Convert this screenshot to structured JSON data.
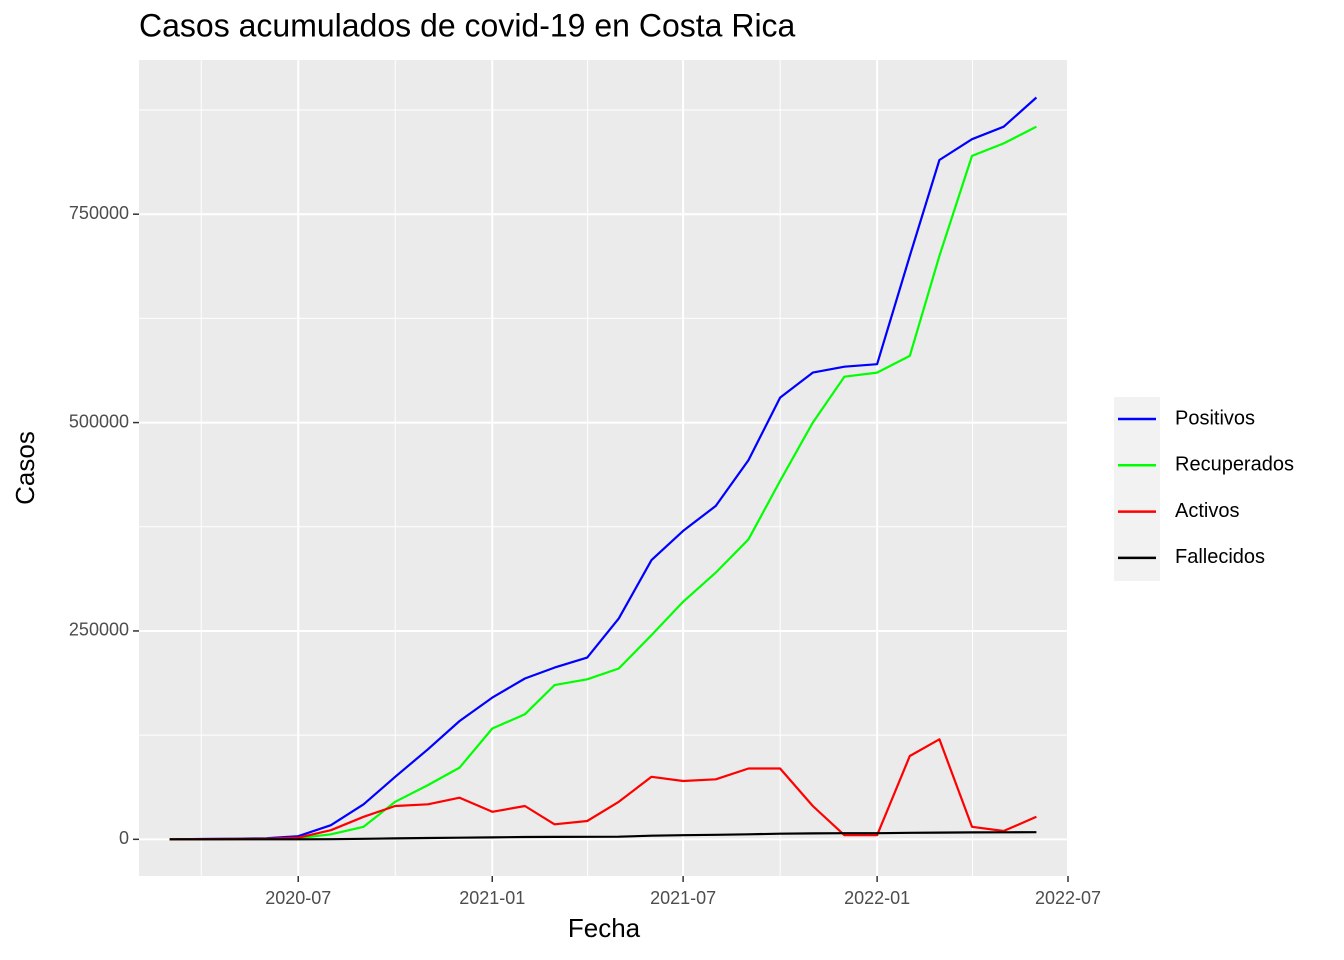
{
  "chart_data": {
    "type": "line",
    "title": "Casos acumulados de covid-19 en Costa Rica",
    "x_label": "Fecha",
    "y_label": "Casos",
    "x": [
      "2020-03",
      "2020-04",
      "2020-05",
      "2020-06",
      "2020-07",
      "2020-08",
      "2020-09",
      "2020-10",
      "2020-11",
      "2020-12",
      "2021-01",
      "2021-02",
      "2021-03",
      "2021-04",
      "2021-05",
      "2021-06",
      "2021-07",
      "2021-08",
      "2021-09",
      "2021-10",
      "2021-11",
      "2021-12",
      "2022-01",
      "2022-02",
      "2022-03",
      "2022-04",
      "2022-05",
      "2022-06"
    ],
    "series": [
      {
        "name": "Positivos",
        "color": "#0000ff",
        "values": [
          0,
          400,
          800,
          1400,
          3700,
          17000,
          42000,
          75000,
          108000,
          142000,
          170000,
          193000,
          206000,
          218000,
          265000,
          335000,
          370000,
          400000,
          455000,
          530000,
          560000,
          567000,
          570000,
          700000,
          815000,
          840000,
          855000,
          890000
        ]
      },
      {
        "name": "Recuperados",
        "color": "#00ff00",
        "values": [
          0,
          50,
          400,
          800,
          1500,
          6000,
          15000,
          45000,
          65000,
          86000,
          133000,
          150000,
          185000,
          192000,
          205000,
          245000,
          285000,
          320000,
          360000,
          430000,
          500000,
          555000,
          560000,
          580000,
          700000,
          820000,
          835000,
          855000
        ]
      },
      {
        "name": "Activos",
        "color": "#ff0000",
        "values": [
          0,
          300,
          400,
          600,
          2000,
          11000,
          27000,
          40000,
          42000,
          50000,
          33000,
          40000,
          18000,
          22000,
          45000,
          75000,
          70000,
          72000,
          85000,
          85000,
          40000,
          5000,
          5000,
          100000,
          120000,
          15000,
          10000,
          27000
        ]
      },
      {
        "name": "Fallecidos",
        "color": "#000000",
        "values": [
          0,
          5,
          10,
          12,
          30,
          200,
          600,
          1100,
          1600,
          2000,
          2300,
          2800,
          2900,
          3000,
          3200,
          4300,
          5000,
          5400,
          6000,
          6700,
          7100,
          7300,
          7300,
          7800,
          8100,
          8300,
          8400,
          8500
        ]
      }
    ],
    "xlim": [
      "2020-02",
      "2022-07"
    ],
    "xticks": [
      "2020-07",
      "2021-01",
      "2021-07",
      "2022-01",
      "2022-07"
    ],
    "ylim": [
      -44000,
      935000
    ],
    "yticks": [
      0,
      250000,
      500000,
      750000
    ],
    "grid": true,
    "minor_grid": true,
    "legend": "right"
  }
}
